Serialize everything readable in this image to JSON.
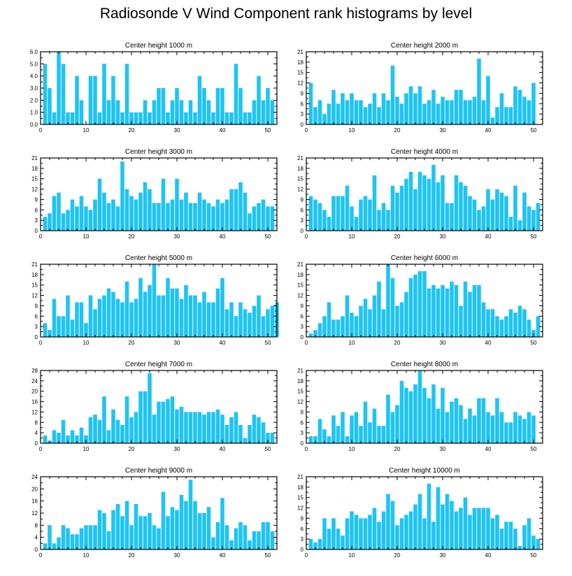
{
  "title": "Radiosonde V Wind Component rank histograms by level",
  "colors": {
    "bar": "#1ec4f4",
    "axis": "#000000",
    "background": "#ffffff"
  },
  "chart_data": [
    {
      "type": "bar",
      "title": "Center height 1000 m",
      "xlim": [
        0,
        52
      ],
      "ylim": [
        0,
        6
      ],
      "xticks": [
        "0",
        "10",
        "20",
        "30",
        "40",
        "50"
      ],
      "yticks": [
        "0.0",
        "1.0",
        "2.0",
        "3.0",
        "4.0",
        "5.0",
        "6.0"
      ],
      "values": [
        5,
        3,
        1,
        6,
        5,
        1,
        1,
        4,
        2,
        0,
        4,
        4,
        1,
        5,
        2,
        4,
        2,
        1,
        5,
        1,
        1,
        1,
        2,
        1,
        2,
        3,
        3,
        1,
        2,
        3,
        2,
        1,
        2,
        1,
        4,
        3,
        2,
        1,
        3,
        3,
        1,
        1,
        5,
        3,
        1,
        1,
        2,
        4,
        2,
        3,
        2
      ]
    },
    {
      "type": "bar",
      "title": "Center height 2000 m",
      "xlim": [
        0,
        52
      ],
      "ylim": [
        0,
        21
      ],
      "xticks": [
        "0",
        "10",
        "20",
        "30",
        "40",
        "50"
      ],
      "yticks": [
        "0",
        "3",
        "6",
        "9",
        "12",
        "15",
        "18",
        "21"
      ],
      "values": [
        12,
        5,
        7,
        3,
        6,
        10,
        6,
        9,
        7,
        9,
        7,
        7,
        5,
        6,
        9,
        5,
        9,
        7,
        17,
        8,
        6,
        9,
        11,
        9,
        11,
        6,
        7,
        10,
        6,
        8,
        7,
        7,
        10,
        10,
        7,
        7,
        8,
        19,
        7,
        14,
        2,
        5,
        9,
        5,
        5,
        11,
        10,
        8,
        7,
        12
      ]
    },
    {
      "type": "bar",
      "title": "Center height 3000 m",
      "xlim": [
        0,
        52
      ],
      "ylim": [
        0,
        21
      ],
      "xticks": [
        "0",
        "10",
        "20",
        "30",
        "40",
        "50"
      ],
      "yticks": [
        "0",
        "3",
        "6",
        "9",
        "12",
        "15",
        "18",
        "21"
      ],
      "values": [
        4,
        5,
        10,
        11,
        5,
        6,
        9,
        7,
        10,
        7,
        6,
        9,
        15,
        11,
        8,
        9,
        7,
        20,
        12,
        10,
        9,
        11,
        14,
        12,
        8,
        8,
        15,
        8,
        9,
        15,
        9,
        11,
        8,
        8,
        11,
        9,
        8,
        7,
        9,
        8,
        9,
        12,
        12,
        14,
        11,
        5,
        7,
        8,
        9,
        7,
        7
      ]
    },
    {
      "type": "bar",
      "title": "Center height 4000 m",
      "xlim": [
        0,
        52
      ],
      "ylim": [
        0,
        21
      ],
      "xticks": [
        "0",
        "10",
        "20",
        "30",
        "40",
        "50"
      ],
      "yticks": [
        "0",
        "3",
        "6",
        "9",
        "12",
        "15",
        "18",
        "21"
      ],
      "values": [
        10,
        9,
        8,
        6,
        4,
        10,
        10,
        10,
        13,
        7,
        4,
        9,
        10,
        9,
        16,
        6,
        8,
        6,
        13,
        11,
        13,
        15,
        17,
        12,
        17,
        16,
        15,
        19,
        14,
        16,
        8,
        8,
        16,
        14,
        13,
        10,
        9,
        6,
        7,
        12,
        9,
        12,
        11,
        10,
        4,
        13,
        3,
        11,
        7,
        6,
        8
      ]
    },
    {
      "type": "bar",
      "title": "Center height 5000 m",
      "xlim": [
        0,
        52
      ],
      "ylim": [
        0,
        21
      ],
      "xticks": [
        "0",
        "10",
        "20",
        "30",
        "40",
        "50"
      ],
      "yticks": [
        "0",
        "3",
        "6",
        "9",
        "12",
        "15",
        "18",
        "21"
      ],
      "values": [
        4,
        2,
        11,
        6,
        6,
        12,
        5,
        10,
        10,
        4,
        12,
        8,
        11,
        12,
        14,
        13,
        11,
        10,
        16,
        10,
        11,
        17,
        13,
        15,
        21,
        12,
        12,
        17,
        14,
        14,
        11,
        15,
        12,
        12,
        10,
        13,
        10,
        10,
        14,
        17,
        8,
        10,
        6,
        10,
        8,
        7,
        9,
        12,
        6,
        8,
        9,
        10
      ]
    },
    {
      "type": "bar",
      "title": "Center height 6000 m",
      "xlim": [
        0,
        52
      ],
      "ylim": [
        0,
        21
      ],
      "xticks": [
        "0",
        "10",
        "20",
        "30",
        "40",
        "50"
      ],
      "yticks": [
        "0",
        "3",
        "6",
        "9",
        "12",
        "15",
        "18",
        "21"
      ],
      "values": [
        1,
        2,
        4,
        6,
        10,
        5,
        5,
        6,
        12,
        7,
        6,
        9,
        11,
        8,
        12,
        16,
        8,
        21,
        17,
        9,
        10,
        13,
        17,
        18,
        19,
        19,
        14,
        15,
        14,
        15,
        14,
        16,
        15,
        9,
        16,
        13,
        15,
        15,
        10,
        8,
        8,
        6,
        5,
        6,
        8,
        7,
        9,
        8,
        5,
        2,
        6
      ]
    },
    {
      "type": "bar",
      "title": "Center height 7000 m",
      "xlim": [
        0,
        52
      ],
      "ylim": [
        0,
        28
      ],
      "xticks": [
        "0",
        "10",
        "20",
        "30",
        "40",
        "50"
      ],
      "yticks": [
        "0",
        "4",
        "8",
        "12",
        "16",
        "20",
        "24",
        "28"
      ],
      "values": [
        3,
        1,
        5,
        4,
        9,
        3,
        5,
        3,
        6,
        3,
        10,
        11,
        9,
        18,
        5,
        13,
        9,
        7,
        18,
        10,
        12,
        20,
        20,
        27,
        11,
        16,
        16,
        17,
        18,
        13,
        14,
        12,
        12,
        12,
        12,
        11,
        12,
        12,
        13,
        11,
        7,
        10,
        12,
        7,
        2,
        7,
        11,
        10,
        8,
        4,
        4
      ]
    },
    {
      "type": "bar",
      "title": "Center height 8000 m",
      "xlim": [
        0,
        52
      ],
      "ylim": [
        0,
        21
      ],
      "xticks": [
        "0",
        "10",
        "20",
        "30",
        "40",
        "50"
      ],
      "yticks": [
        "0",
        "3",
        "6",
        "9",
        "12",
        "15",
        "18",
        "21"
      ],
      "values": [
        2,
        2,
        7,
        4,
        2,
        8,
        5,
        9,
        2,
        8,
        9,
        5,
        12,
        6,
        10,
        5,
        5,
        14,
        9,
        11,
        18,
        16,
        15,
        17,
        21,
        16,
        13,
        17,
        10,
        16,
        9,
        12,
        13,
        11,
        7,
        10,
        8,
        13,
        13,
        9,
        8,
        13,
        9,
        6,
        6,
        9,
        8,
        7,
        9,
        8
      ]
    },
    {
      "type": "bar",
      "title": "Center height 9000 m",
      "xlim": [
        0,
        52
      ],
      "ylim": [
        0,
        24
      ],
      "xticks": [
        "0",
        "10",
        "20",
        "30",
        "40",
        "50"
      ],
      "yticks": [
        "0",
        "4",
        "8",
        "12",
        "16",
        "20",
        "24"
      ],
      "values": [
        2,
        8,
        2,
        4,
        8,
        7,
        5,
        5,
        7,
        8,
        8,
        8,
        13,
        12,
        6,
        13,
        15,
        11,
        16,
        8,
        15,
        11,
        11,
        12,
        8,
        7,
        19,
        11,
        14,
        13,
        18,
        16,
        23,
        16,
        12,
        12,
        14,
        4,
        9,
        17,
        8,
        3,
        7,
        9,
        8,
        3,
        6,
        6,
        9,
        9,
        6
      ]
    },
    {
      "type": "bar",
      "title": "Center height 10000 m",
      "xlim": [
        0,
        52
      ],
      "ylim": [
        0,
        21
      ],
      "xticks": [
        "0",
        "10",
        "20",
        "30",
        "40",
        "50"
      ],
      "yticks": [
        "0",
        "3",
        "6",
        "9",
        "12",
        "15",
        "18",
        "21"
      ],
      "values": [
        3,
        2,
        3,
        9,
        6,
        9,
        6,
        4,
        9,
        11,
        10,
        9,
        9,
        10,
        12,
        8,
        11,
        16,
        14,
        7,
        9,
        10,
        11,
        13,
        16,
        9,
        19,
        8,
        18,
        13,
        16,
        14,
        11,
        12,
        15,
        10,
        12,
        12,
        12,
        12,
        9,
        10,
        6,
        8,
        8,
        6,
        1,
        7,
        9,
        4,
        3
      ]
    }
  ]
}
